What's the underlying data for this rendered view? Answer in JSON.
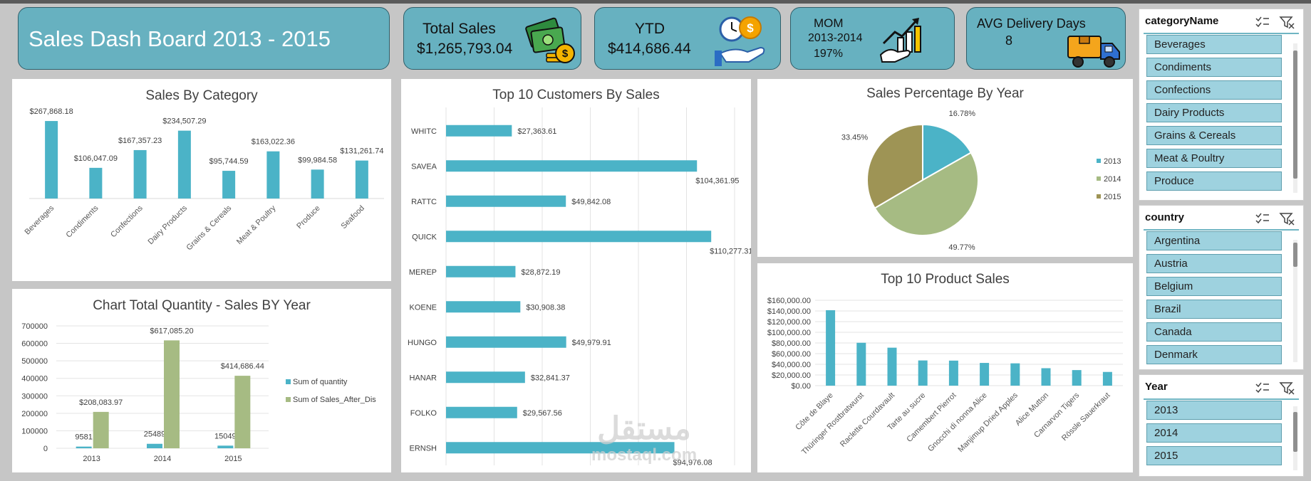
{
  "dashboard": {
    "title": "Sales Dash Board 2013 - 2015"
  },
  "kpis": {
    "total_sales": {
      "label": "Total Sales",
      "value": "$1,265,793.04"
    },
    "ytd": {
      "label": "YTD",
      "value": "$414,686.44"
    },
    "mom": {
      "label": "MOM",
      "period": "2013-2014",
      "value": "197%"
    },
    "avg_delivery": {
      "label": "AVG Delivery Days",
      "value": "8"
    }
  },
  "colors": {
    "teal": "#4bb3c7",
    "green": "#a6bb83",
    "olive": "#9e9455",
    "kpi_bg": "#67b1c0"
  },
  "chart_data": [
    {
      "id": "sales_by_category",
      "type": "bar",
      "title": "Sales By Category",
      "categories": [
        "Beverages",
        "Condiments",
        "Confections",
        "Dairy Products",
        "Grains & Cereals",
        "Meat & Poultry",
        "Produce",
        "Seafood"
      ],
      "values": [
        267868.18,
        106047.09,
        167357.23,
        234507.29,
        95744.59,
        163022.36,
        99984.58,
        131261.74
      ],
      "labels": [
        "$267,868.18",
        "$106,047.09",
        "$167,357.23",
        "$234,507.29",
        "$95,744.59",
        "$163,022.36",
        "$99,984.58",
        "$131,261.74"
      ],
      "ylim": [
        0,
        300000
      ]
    },
    {
      "id": "top_customers",
      "type": "bar",
      "orientation": "horizontal",
      "title": "Top 10 Customers By Sales",
      "categories": [
        "WHITC",
        "SAVEA",
        "RATTC",
        "QUICK",
        "MEREP",
        "KOENE",
        "HUNGO",
        "HANAR",
        "FOLKO",
        "ERNSH"
      ],
      "values": [
        27363.61,
        104361.95,
        49842.08,
        110277.31,
        28872.19,
        30908.38,
        49979.91,
        32841.37,
        29567.56,
        94976.08
      ],
      "labels": [
        "$27,363.61",
        "$104,361.95",
        "$49,842.08",
        "$110,277.31",
        "$28,872.19",
        "$30,908.38",
        "$49,979.91",
        "$32,841.37",
        "$29,567.56",
        "$94,976.08"
      ],
      "xlim": [
        0,
        120000
      ]
    },
    {
      "id": "sales_pct_by_year",
      "type": "pie",
      "title": "Sales Percentage By Year",
      "categories": [
        "2013",
        "2014",
        "2015"
      ],
      "values": [
        16.78,
        49.77,
        33.45
      ],
      "labels": [
        "16.78%",
        "49.77%",
        "33.45%"
      ],
      "legend": "right"
    },
    {
      "id": "quantity_sales_by_year",
      "type": "bar",
      "title": "Chart Total Quantity - Sales BY Year",
      "categories": [
        "2013",
        "2014",
        "2015"
      ],
      "series": [
        {
          "name": "Sum of quantity",
          "values": [
            9581,
            25489,
            15049
          ],
          "labels": [
            "9581",
            "25489",
            "15049"
          ]
        },
        {
          "name": "Sum of Sales_After_Dis",
          "values": [
            208083.97,
            617085.2,
            414686.44
          ],
          "labels": [
            "$208,083.97",
            "$617,085.20",
            "$414,686.44"
          ]
        }
      ],
      "ylim": [
        0,
        700000
      ],
      "yticks": [
        "0",
        "100000",
        "200000",
        "300000",
        "400000",
        "500000",
        "600000",
        "700000"
      ],
      "legend": "right"
    },
    {
      "id": "top_products",
      "type": "bar",
      "title": "Top 10 Product Sales",
      "categories": [
        "Côte de Blaye",
        "Thüringer Rostbratwurst",
        "Raclette Courdavault",
        "Tarte au sucre",
        "Camembert Pierrot",
        "Gnocchi di nonna Alice",
        "Manjimup Dried Apples",
        "Alice Mutton",
        "Carnarvon Tigers",
        "Rössle Sauerkraut"
      ],
      "values": [
        141396.74,
        80368.67,
        71155.7,
        47234.97,
        46927.48,
        42593.06,
        41819.65,
        32698.38,
        29171.87,
        25696.64
      ],
      "ylim": [
        0,
        160000
      ],
      "yticks": [
        "$0.00",
        "$20,000.00",
        "$40,000.00",
        "$60,000.00",
        "$80,000.00",
        "$100,000.00",
        "$120,000.00",
        "$140,000.00",
        "$160,000.00"
      ]
    }
  ],
  "slicers": {
    "category": {
      "header": "categoryName",
      "items": [
        "Beverages",
        "Condiments",
        "Confections",
        "Dairy Products",
        "Grains & Cereals",
        "Meat & Poultry",
        "Produce"
      ]
    },
    "country": {
      "header": "country",
      "items": [
        "Argentina",
        "Austria",
        "Belgium",
        "Brazil",
        "Canada",
        "Denmark"
      ]
    },
    "year": {
      "header": "Year",
      "items": [
        "2013",
        "2014",
        "2015"
      ]
    }
  },
  "watermark": {
    "arabic": "مستقل",
    "latin": "mostaql.com"
  }
}
